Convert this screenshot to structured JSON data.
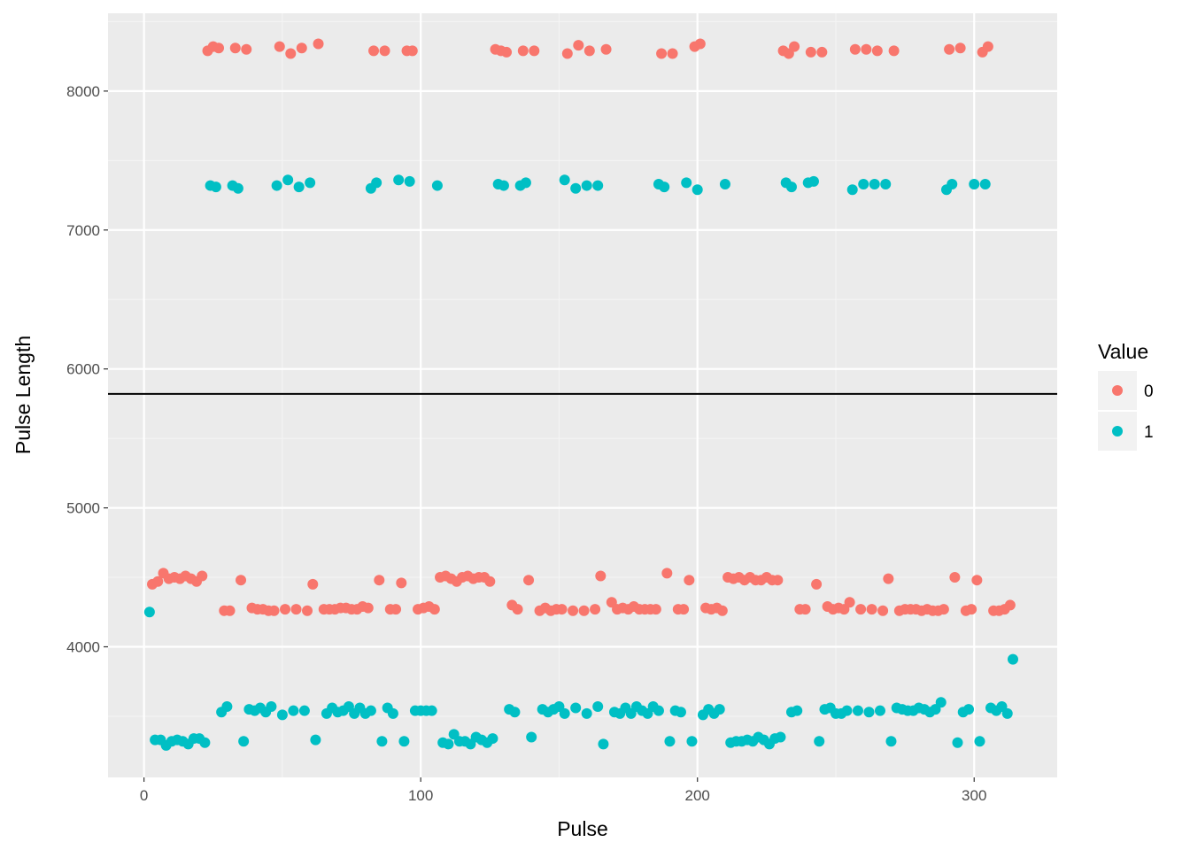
{
  "chart_data": {
    "type": "scatter",
    "title": "",
    "xlabel": "Pulse",
    "ylabel": "Pulse Length",
    "xlim": [
      -13,
      330
    ],
    "ylim": [
      3060,
      8560
    ],
    "x_ticks": [
      0,
      100,
      200,
      300
    ],
    "y_ticks": [
      4000,
      5000,
      6000,
      7000,
      8000
    ],
    "grid": true,
    "threshold_line": 5820,
    "legend": {
      "title": "Value",
      "position": "right",
      "entries": [
        {
          "label": "0",
          "color": "#F8766D"
        },
        {
          "label": "1",
          "color": "#00BFC4"
        }
      ]
    },
    "series": [
      {
        "name": "0",
        "color": "#F8766D",
        "points": [
          [
            3,
            4450
          ],
          [
            5,
            4470
          ],
          [
            7,
            4530
          ],
          [
            9,
            4490
          ],
          [
            11,
            4500
          ],
          [
            13,
            4490
          ],
          [
            15,
            4510
          ],
          [
            17,
            4490
          ],
          [
            19,
            4470
          ],
          [
            21,
            4510
          ],
          [
            29,
            4260
          ],
          [
            31,
            4260
          ],
          [
            35,
            4480
          ],
          [
            39,
            4280
          ],
          [
            41,
            4270
          ],
          [
            43,
            4270
          ],
          [
            45,
            4260
          ],
          [
            47,
            4260
          ],
          [
            51,
            4270
          ],
          [
            55,
            4270
          ],
          [
            59,
            4260
          ],
          [
            61,
            4450
          ],
          [
            65,
            4270
          ],
          [
            67,
            4270
          ],
          [
            69,
            4270
          ],
          [
            71,
            4280
          ],
          [
            73,
            4280
          ],
          [
            75,
            4270
          ],
          [
            77,
            4270
          ],
          [
            79,
            4290
          ],
          [
            81,
            4280
          ],
          [
            85,
            4480
          ],
          [
            89,
            4270
          ],
          [
            91,
            4270
          ],
          [
            93,
            4460
          ],
          [
            99,
            4270
          ],
          [
            101,
            4280
          ],
          [
            103,
            4290
          ],
          [
            105,
            4270
          ],
          [
            107,
            4500
          ],
          [
            109,
            4510
          ],
          [
            111,
            4490
          ],
          [
            113,
            4470
          ],
          [
            115,
            4500
          ],
          [
            117,
            4510
          ],
          [
            119,
            4490
          ],
          [
            121,
            4500
          ],
          [
            123,
            4500
          ],
          [
            125,
            4470
          ],
          [
            133,
            4300
          ],
          [
            135,
            4270
          ],
          [
            139,
            4480
          ],
          [
            143,
            4260
          ],
          [
            145,
            4280
          ],
          [
            147,
            4260
          ],
          [
            149,
            4270
          ],
          [
            151,
            4270
          ],
          [
            155,
            4260
          ],
          [
            159,
            4260
          ],
          [
            163,
            4270
          ],
          [
            165,
            4510
          ],
          [
            169,
            4320
          ],
          [
            171,
            4270
          ],
          [
            173,
            4280
          ],
          [
            175,
            4270
          ],
          [
            177,
            4290
          ],
          [
            179,
            4270
          ],
          [
            181,
            4270
          ],
          [
            183,
            4270
          ],
          [
            185,
            4270
          ],
          [
            189,
            4530
          ],
          [
            193,
            4270
          ],
          [
            195,
            4270
          ],
          [
            197,
            4480
          ],
          [
            203,
            4280
          ],
          [
            205,
            4270
          ],
          [
            207,
            4280
          ],
          [
            209,
            4260
          ],
          [
            211,
            4500
          ],
          [
            213,
            4490
          ],
          [
            215,
            4500
          ],
          [
            217,
            4480
          ],
          [
            219,
            4500
          ],
          [
            221,
            4480
          ],
          [
            223,
            4480
          ],
          [
            225,
            4500
          ],
          [
            227,
            4480
          ],
          [
            229,
            4480
          ],
          [
            237,
            4270
          ],
          [
            239,
            4270
          ],
          [
            243,
            4450
          ],
          [
            247,
            4290
          ],
          [
            249,
            4270
          ],
          [
            251,
            4280
          ],
          [
            253,
            4270
          ],
          [
            255,
            4320
          ],
          [
            259,
            4270
          ],
          [
            263,
            4270
          ],
          [
            267,
            4260
          ],
          [
            269,
            4490
          ],
          [
            273,
            4260
          ],
          [
            275,
            4270
          ],
          [
            277,
            4270
          ],
          [
            279,
            4270
          ],
          [
            281,
            4260
          ],
          [
            283,
            4270
          ],
          [
            285,
            4260
          ],
          [
            287,
            4260
          ],
          [
            289,
            4270
          ],
          [
            293,
            4500
          ],
          [
            297,
            4260
          ],
          [
            299,
            4270
          ],
          [
            301,
            4480
          ],
          [
            307,
            4260
          ],
          [
            309,
            4260
          ],
          [
            311,
            4270
          ],
          [
            313,
            4300
          ],
          [
            23,
            8290
          ],
          [
            25,
            8320
          ],
          [
            27,
            8310
          ],
          [
            33,
            8310
          ],
          [
            37,
            8300
          ],
          [
            49,
            8320
          ],
          [
            53,
            8270
          ],
          [
            57,
            8310
          ],
          [
            63,
            8340
          ],
          [
            83,
            8290
          ],
          [
            87,
            8290
          ],
          [
            95,
            8290
          ],
          [
            97,
            8290
          ],
          [
            127,
            8300
          ],
          [
            129,
            8290
          ],
          [
            131,
            8280
          ],
          [
            137,
            8290
          ],
          [
            141,
            8290
          ],
          [
            153,
            8270
          ],
          [
            157,
            8330
          ],
          [
            161,
            8290
          ],
          [
            167,
            8300
          ],
          [
            187,
            8270
          ],
          [
            191,
            8270
          ],
          [
            199,
            8320
          ],
          [
            201,
            8340
          ],
          [
            231,
            8290
          ],
          [
            233,
            8270
          ],
          [
            235,
            8320
          ],
          [
            241,
            8280
          ],
          [
            245,
            8280
          ],
          [
            257,
            8300
          ],
          [
            261,
            8300
          ],
          [
            265,
            8290
          ],
          [
            271,
            8290
          ],
          [
            291,
            8300
          ],
          [
            295,
            8310
          ],
          [
            303,
            8280
          ],
          [
            305,
            8320
          ]
        ]
      },
      {
        "name": "1",
        "color": "#00BFC4",
        "points": [
          [
            2,
            4250
          ],
          [
            4,
            3330
          ],
          [
            6,
            3330
          ],
          [
            8,
            3290
          ],
          [
            10,
            3320
          ],
          [
            12,
            3330
          ],
          [
            14,
            3320
          ],
          [
            16,
            3300
          ],
          [
            18,
            3340
          ],
          [
            20,
            3340
          ],
          [
            22,
            3310
          ],
          [
            28,
            3530
          ],
          [
            30,
            3570
          ],
          [
            36,
            3320
          ],
          [
            38,
            3550
          ],
          [
            40,
            3540
          ],
          [
            42,
            3560
          ],
          [
            44,
            3530
          ],
          [
            46,
            3570
          ],
          [
            50,
            3510
          ],
          [
            54,
            3540
          ],
          [
            58,
            3540
          ],
          [
            62,
            3330
          ],
          [
            66,
            3520
          ],
          [
            68,
            3560
          ],
          [
            70,
            3530
          ],
          [
            72,
            3540
          ],
          [
            74,
            3570
          ],
          [
            76,
            3520
          ],
          [
            78,
            3560
          ],
          [
            80,
            3520
          ],
          [
            82,
            3540
          ],
          [
            86,
            3320
          ],
          [
            88,
            3560
          ],
          [
            90,
            3520
          ],
          [
            94,
            3320
          ],
          [
            98,
            3540
          ],
          [
            100,
            3540
          ],
          [
            102,
            3540
          ],
          [
            104,
            3540
          ],
          [
            108,
            3310
          ],
          [
            110,
            3300
          ],
          [
            112,
            3370
          ],
          [
            114,
            3320
          ],
          [
            116,
            3320
          ],
          [
            118,
            3300
          ],
          [
            120,
            3350
          ],
          [
            122,
            3330
          ],
          [
            124,
            3310
          ],
          [
            126,
            3340
          ],
          [
            132,
            3550
          ],
          [
            134,
            3530
          ],
          [
            140,
            3350
          ],
          [
            144,
            3550
          ],
          [
            146,
            3530
          ],
          [
            148,
            3550
          ],
          [
            150,
            3570
          ],
          [
            152,
            3520
          ],
          [
            156,
            3560
          ],
          [
            160,
            3520
          ],
          [
            164,
            3570
          ],
          [
            166,
            3300
          ],
          [
            170,
            3530
          ],
          [
            172,
            3520
          ],
          [
            174,
            3560
          ],
          [
            176,
            3520
          ],
          [
            178,
            3570
          ],
          [
            180,
            3540
          ],
          [
            182,
            3520
          ],
          [
            184,
            3570
          ],
          [
            186,
            3540
          ],
          [
            190,
            3320
          ],
          [
            192,
            3540
          ],
          [
            194,
            3530
          ],
          [
            198,
            3320
          ],
          [
            202,
            3510
          ],
          [
            204,
            3550
          ],
          [
            206,
            3520
          ],
          [
            208,
            3550
          ],
          [
            212,
            3310
          ],
          [
            214,
            3320
          ],
          [
            216,
            3320
          ],
          [
            218,
            3330
          ],
          [
            220,
            3320
          ],
          [
            222,
            3350
          ],
          [
            224,
            3330
          ],
          [
            226,
            3300
          ],
          [
            228,
            3340
          ],
          [
            230,
            3350
          ],
          [
            234,
            3530
          ],
          [
            236,
            3540
          ],
          [
            244,
            3320
          ],
          [
            246,
            3550
          ],
          [
            248,
            3560
          ],
          [
            250,
            3520
          ],
          [
            252,
            3520
          ],
          [
            254,
            3540
          ],
          [
            258,
            3540
          ],
          [
            262,
            3530
          ],
          [
            266,
            3540
          ],
          [
            270,
            3320
          ],
          [
            272,
            3560
          ],
          [
            274,
            3550
          ],
          [
            276,
            3540
          ],
          [
            278,
            3540
          ],
          [
            280,
            3560
          ],
          [
            282,
            3550
          ],
          [
            284,
            3530
          ],
          [
            286,
            3550
          ],
          [
            288,
            3600
          ],
          [
            294,
            3310
          ],
          [
            296,
            3530
          ],
          [
            298,
            3550
          ],
          [
            302,
            3320
          ],
          [
            306,
            3560
          ],
          [
            308,
            3540
          ],
          [
            310,
            3570
          ],
          [
            312,
            3520
          ],
          [
            314,
            3910
          ],
          [
            24,
            7320
          ],
          [
            26,
            7310
          ],
          [
            32,
            7320
          ],
          [
            34,
            7300
          ],
          [
            48,
            7320
          ],
          [
            52,
            7360
          ],
          [
            56,
            7310
          ],
          [
            60,
            7340
          ],
          [
            82,
            7300
          ],
          [
            84,
            7340
          ],
          [
            92,
            7360
          ],
          [
            96,
            7350
          ],
          [
            106,
            7320
          ],
          [
            128,
            7330
          ],
          [
            130,
            7320
          ],
          [
            136,
            7320
          ],
          [
            138,
            7340
          ],
          [
            152,
            7360
          ],
          [
            156,
            7300
          ],
          [
            160,
            7320
          ],
          [
            164,
            7320
          ],
          [
            186,
            7330
          ],
          [
            188,
            7310
          ],
          [
            196,
            7340
          ],
          [
            200,
            7290
          ],
          [
            210,
            7330
          ],
          [
            232,
            7340
          ],
          [
            234,
            7310
          ],
          [
            240,
            7340
          ],
          [
            242,
            7350
          ],
          [
            256,
            7290
          ],
          [
            260,
            7330
          ],
          [
            264,
            7330
          ],
          [
            268,
            7330
          ],
          [
            290,
            7290
          ],
          [
            292,
            7330
          ],
          [
            300,
            7330
          ],
          [
            304,
            7330
          ]
        ]
      }
    ]
  }
}
